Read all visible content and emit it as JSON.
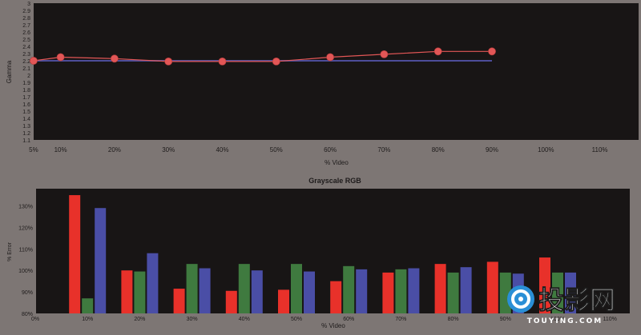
{
  "chart_data": [
    {
      "type": "line",
      "title": "",
      "xlabel": "% Video",
      "ylabel": "Gamma",
      "x_tick_labels": [
        "5%",
        "10%",
        "20%",
        "30%",
        "40%",
        "50%",
        "60%",
        "70%",
        "80%",
        "90%",
        "100%",
        "110%"
      ],
      "y_tick_labels": [
        "1.1",
        "1.2",
        "1.3",
        "1.4",
        "1.5",
        "1.6",
        "1.7",
        "1.8",
        "1.9",
        "2",
        "2.1",
        "2.2",
        "2.3",
        "2.4",
        "2.5",
        "2.6",
        "2.7",
        "2.8",
        "2.9",
        "3"
      ],
      "ylim": [
        1.1,
        3.0
      ],
      "series": [
        {
          "x": [
            5,
            10,
            20,
            30,
            40,
            50,
            60,
            70,
            80,
            90
          ],
          "values": [
            2.2,
            2.25,
            2.23,
            2.19,
            2.19,
            2.19,
            2.25,
            2.29,
            2.33,
            2.33
          ],
          "color": "#e25656"
        },
        {
          "x": [
            5,
            10,
            20,
            30,
            40,
            50,
            60,
            70,
            80,
            90
          ],
          "values": [
            2.2,
            2.2,
            2.2,
            2.2,
            2.2,
            2.2,
            2.2,
            2.2,
            2.2,
            2.2
          ],
          "color": "#4d4d9a"
        }
      ],
      "grid": false
    },
    {
      "type": "bar",
      "title": "Grayscale RGB",
      "xlabel": "% Video",
      "ylabel": "% Error",
      "x_tick_labels": [
        "0%",
        "10%",
        "20%",
        "30%",
        "40%",
        "50%",
        "60%",
        "70%",
        "80%",
        "90%",
        "100%",
        "110%"
      ],
      "y_tick_labels": [
        "80%",
        "90%",
        "100%",
        "110%",
        "120%",
        "130%"
      ],
      "ylim": [
        80,
        138
      ],
      "categories": [
        "10%",
        "20%",
        "30%",
        "40%",
        "50%",
        "60%",
        "70%",
        "80%",
        "90%",
        "100%"
      ],
      "series": [
        {
          "color": "#e8312a",
          "values": [
            135,
            100,
            91.5,
            90.5,
            91,
            95,
            99,
            103,
            104,
            106
          ]
        },
        {
          "color": "#3f7a3f",
          "values": [
            87,
            99.5,
            103,
            103,
            103,
            102,
            100.5,
            99,
            99,
            99
          ]
        },
        {
          "color": "#4a4ea6",
          "values": [
            129,
            108,
            101,
            100,
            99.5,
            100.5,
            101,
            101.5,
            98.5,
            99
          ]
        }
      ],
      "grid": false
    }
  ],
  "watermark": {
    "brand": "投影网",
    "domain": "TOUYING.COM"
  }
}
